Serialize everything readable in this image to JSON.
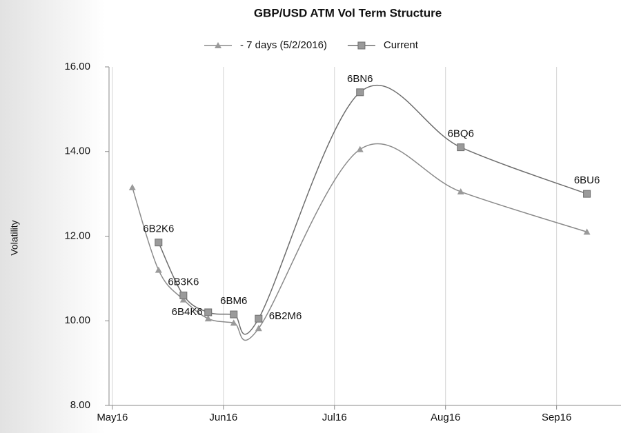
{
  "chart_data": {
    "type": "line",
    "title": "GBP/USD ATM Vol Term Structure",
    "y_label": "Volatility",
    "xlim": [
      -0.03,
      4.58
    ],
    "xticks": [
      {
        "value": 0,
        "label": "May16"
      },
      {
        "value": 1,
        "label": "Jun16"
      },
      {
        "value": 2,
        "label": "Jul16"
      },
      {
        "value": 3,
        "label": "Aug16"
      },
      {
        "value": 4,
        "label": "Sep16"
      }
    ],
    "ylim": [
      8,
      16
    ],
    "yticks": [
      {
        "value": 8,
        "label": "8.00"
      },
      {
        "value": 10,
        "label": "10.00"
      },
      {
        "value": 12,
        "label": "12.00"
      },
      {
        "value": 14,
        "label": "14.00"
      },
      {
        "value": 16,
        "label": "16.00"
      }
    ],
    "grid": "x",
    "series": [
      {
        "name": "- 7 days (5/2/2016)",
        "color": "#8a8a8a",
        "marker": "triangle",
        "x": [
          0.18,
          0.416,
          0.64,
          0.863,
          1.093,
          1.317,
          2.23,
          3.137,
          4.273
        ],
        "values": [
          13.15,
          11.2,
          10.5,
          10.05,
          9.95,
          9.82,
          14.05,
          13.05,
          12.1
        ]
      },
      {
        "name": "Current",
        "color": "#6e6e6e",
        "marker": "square",
        "x": [
          0.416,
          0.64,
          0.863,
          1.093,
          1.317,
          2.23,
          3.137,
          4.273
        ],
        "values": [
          11.85,
          10.6,
          10.2,
          10.15,
          10.05,
          15.4,
          14.1,
          13.0
        ],
        "point_labels": [
          "6B2K6",
          "6B3K6",
          "6B4K6",
          "6BM6",
          "6B2M6",
          "6BN6",
          "6BQ6",
          "6BU6"
        ]
      }
    ]
  }
}
